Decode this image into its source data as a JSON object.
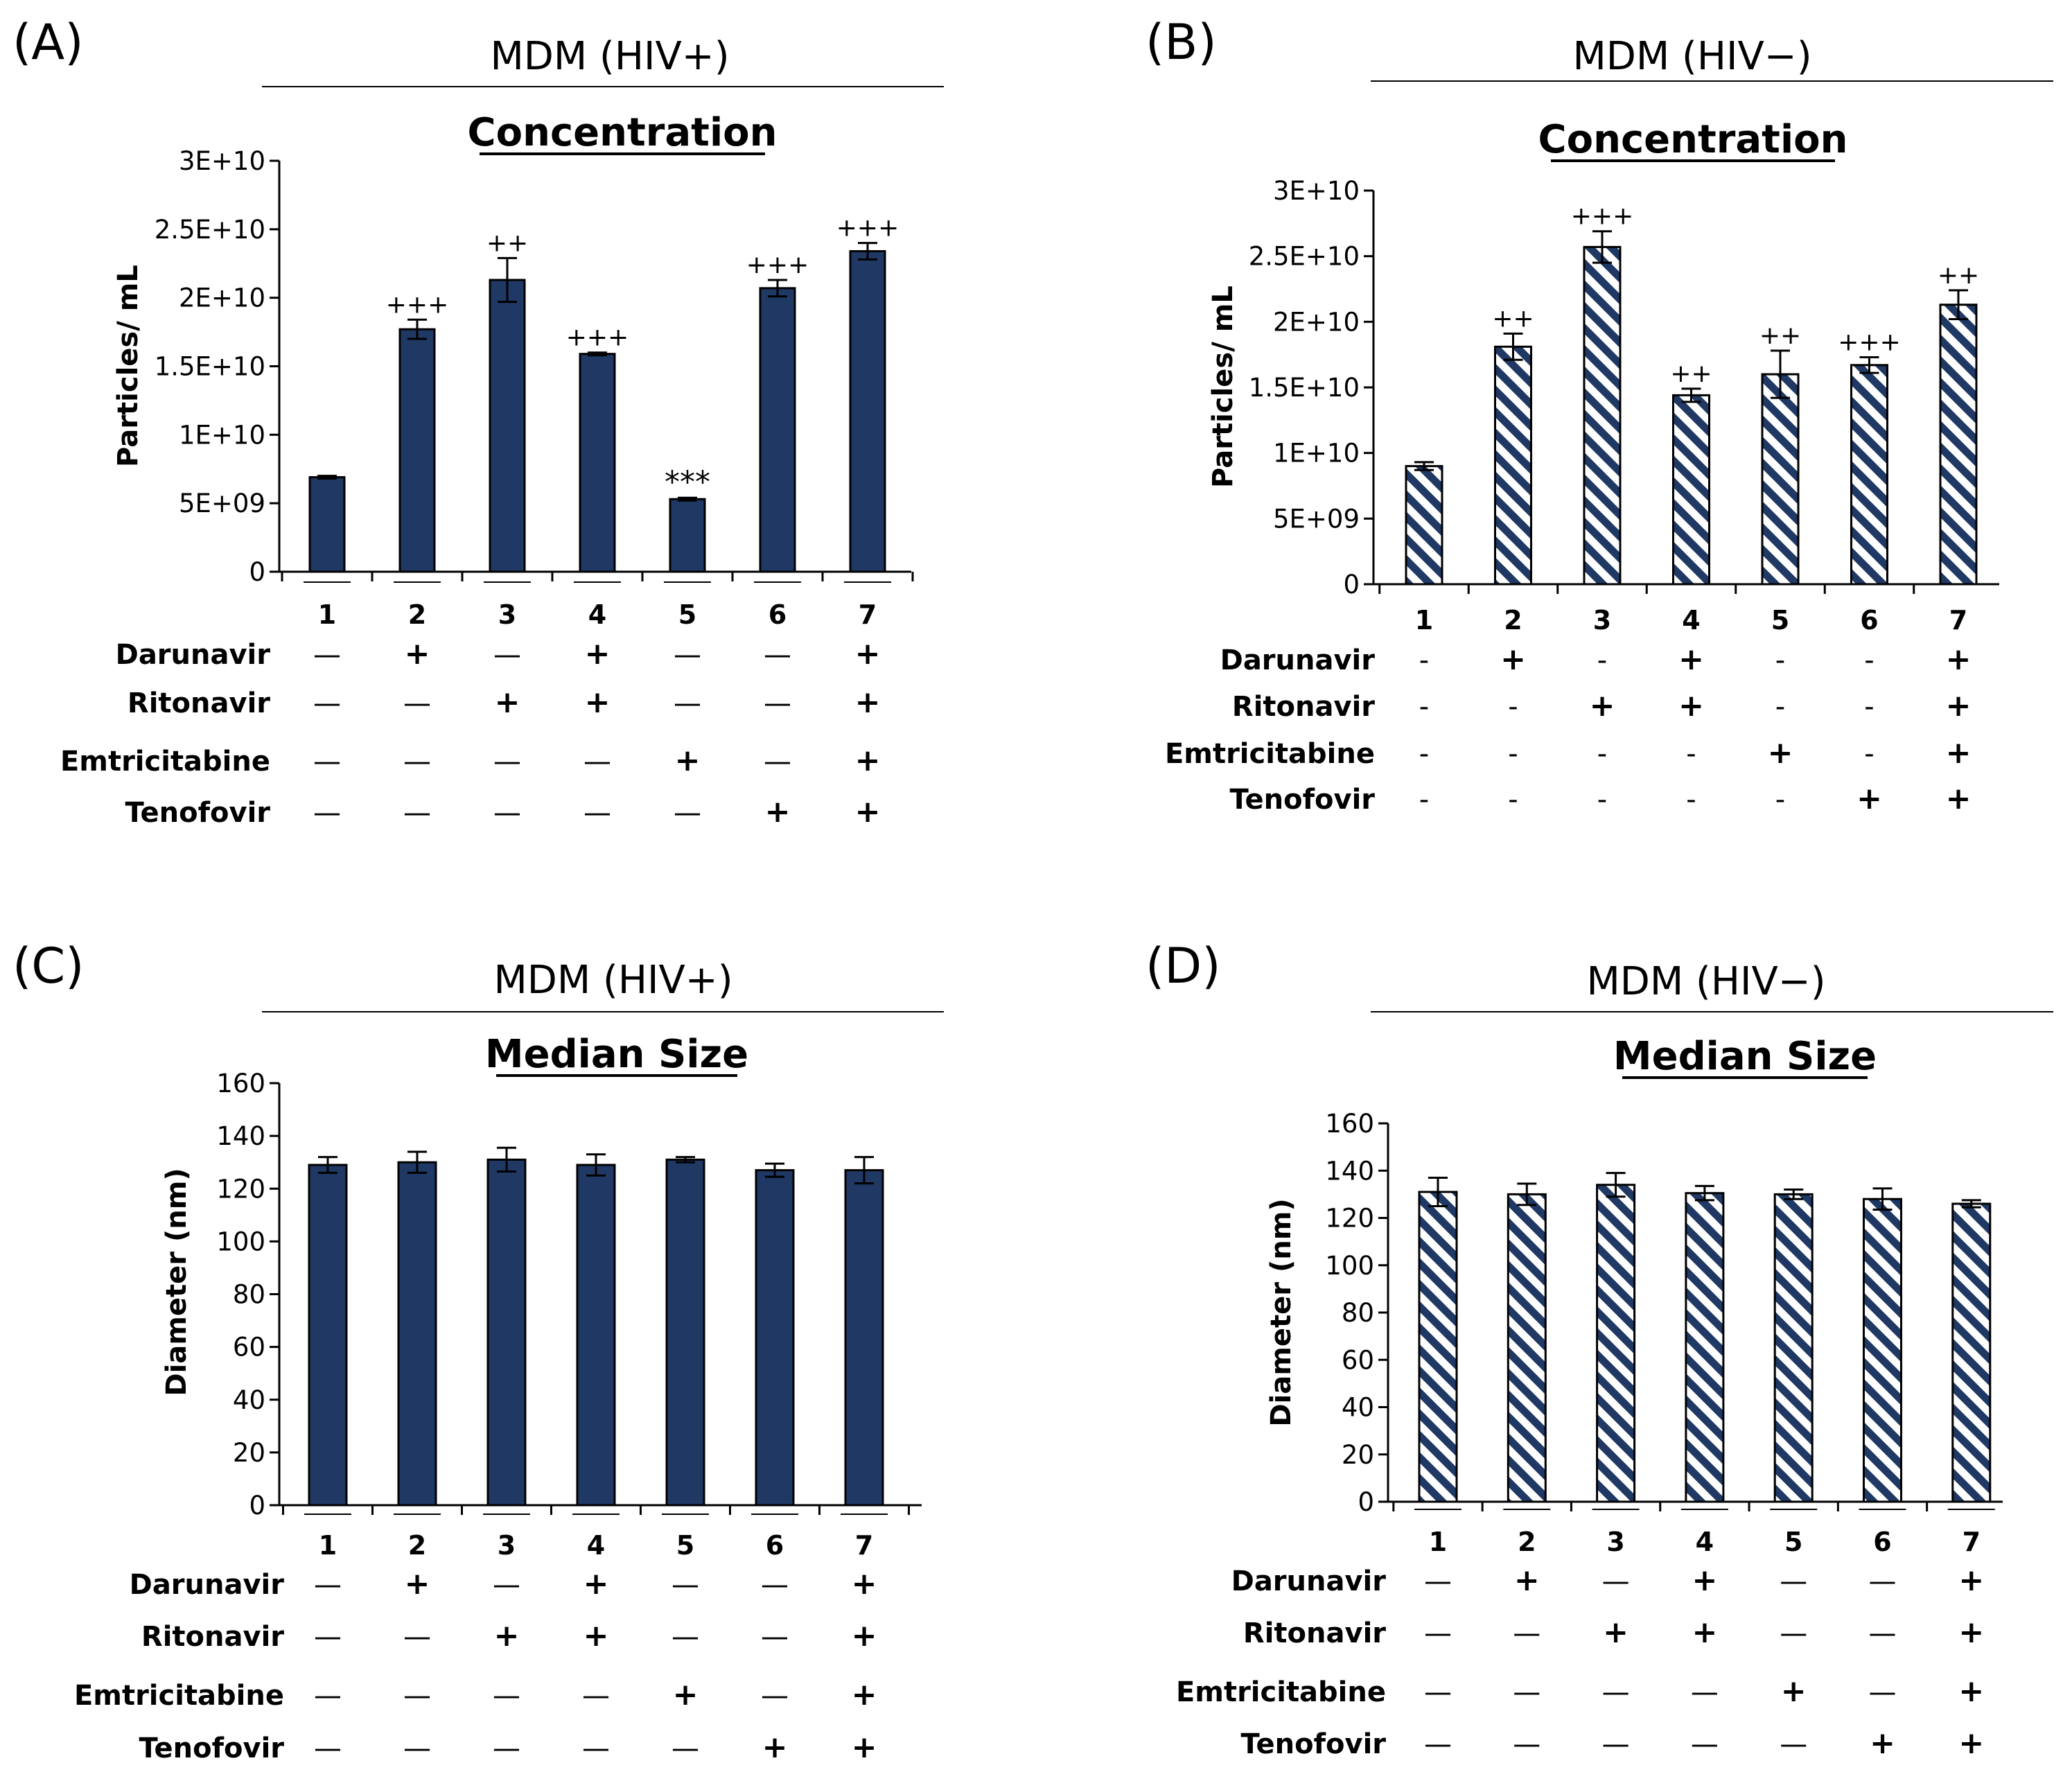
{
  "figure": {
    "treatments": [
      "Darunavir",
      "Ritonavir",
      "Emtricitabine",
      "Tenofovir"
    ],
    "group_labels": [
      "1",
      "2",
      "3",
      "4",
      "5",
      "6",
      "7"
    ],
    "minus_sign": "—",
    "hyphen_sign": "-",
    "plus_sign": "+",
    "bar_color_solid": "#1f3864",
    "bar_color_hatch": "#1f3864"
  },
  "chart_data": [
    {
      "panel": "(A)",
      "header": "MDM (HIV+)",
      "title": "Concentration",
      "type": "bar",
      "fill": "solid",
      "ylabel": "Particles/ mL",
      "ylim": [
        0,
        30000000000
      ],
      "yticks": [
        0,
        5000000000,
        10000000000,
        15000000000,
        20000000000,
        25000000000,
        30000000000
      ],
      "ytick_labels": [
        "0",
        "5E+09",
        "1E+10",
        "1.5E+10",
        "2E+10",
        "2.5E+10",
        "3E+10"
      ],
      "categories": [
        "1",
        "2",
        "3",
        "4",
        "5",
        "6",
        "7"
      ],
      "values": [
        6900000000,
        17700000000,
        21300000000,
        15900000000,
        5300000000,
        20700000000,
        23400000000
      ],
      "errors": [
        100000000,
        700000000,
        1600000000,
        100000000,
        100000000,
        600000000,
        600000000
      ],
      "annotations": [
        "",
        "+++",
        "++",
        "+++",
        "***",
        "+++",
        "+++"
      ],
      "treatment_matrix": [
        [
          "—",
          "+",
          "—",
          "+",
          "—",
          "—",
          "+"
        ],
        [
          "—",
          "—",
          "+",
          "+",
          "—",
          "—",
          "+"
        ],
        [
          "—",
          "—",
          "—",
          "—",
          "+",
          "—",
          "+"
        ],
        [
          "—",
          "—",
          "—",
          "—",
          "—",
          "+",
          "+"
        ]
      ]
    },
    {
      "panel": "(B)",
      "header": "MDM (HIV−)",
      "title": "Concentration",
      "type": "bar",
      "fill": "hatch",
      "ylabel": "Particles/ mL",
      "ylim": [
        0,
        30000000000
      ],
      "yticks": [
        0,
        5000000000,
        10000000000,
        15000000000,
        20000000000,
        25000000000,
        30000000000
      ],
      "ytick_labels": [
        "0",
        "5E+09",
        "1E+10",
        "1.5E+10",
        "2E+10",
        "2.5E+10",
        "3E+10"
      ],
      "categories": [
        "1",
        "2",
        "3",
        "4",
        "5",
        "6",
        "7"
      ],
      "values": [
        9000000000,
        18100000000,
        25700000000,
        14400000000,
        16000000000,
        16700000000,
        21300000000
      ],
      "errors": [
        300000000,
        1000000000,
        1200000000,
        500000000,
        1800000000,
        600000000,
        1100000000
      ],
      "annotations": [
        "",
        "++",
        "+++",
        "++",
        "++",
        "+++",
        "++"
      ],
      "treatment_matrix": [
        [
          "-",
          "+",
          "-",
          "+",
          "-",
          "-",
          "+"
        ],
        [
          "-",
          "-",
          "+",
          "+",
          "-",
          "-",
          "+"
        ],
        [
          "-",
          "-",
          "-",
          "-",
          "+",
          "-",
          "+"
        ],
        [
          "-",
          "-",
          "-",
          "-",
          "-",
          "+",
          "+"
        ]
      ]
    },
    {
      "panel": "(C)",
      "header": "MDM (HIV+)",
      "title": "Median Size",
      "type": "bar",
      "fill": "solid",
      "ylabel": "Diameter (nm)",
      "ylim": [
        0,
        160
      ],
      "yticks": [
        0,
        20,
        40,
        60,
        80,
        100,
        120,
        140,
        160
      ],
      "ytick_labels": [
        "0",
        "20",
        "40",
        "60",
        "80",
        "100",
        "120",
        "140",
        "160"
      ],
      "categories": [
        "1",
        "2",
        "3",
        "4",
        "5",
        "6",
        "7"
      ],
      "values": [
        129,
        130,
        131,
        129,
        131,
        127,
        127
      ],
      "errors": [
        3,
        4,
        4.5,
        4,
        1,
        2.5,
        5
      ],
      "annotations": [
        "",
        "",
        "",
        "",
        "",
        "",
        ""
      ],
      "treatment_matrix": [
        [
          "—",
          "+",
          "—",
          "+",
          "—",
          "—",
          "+"
        ],
        [
          "—",
          "—",
          "+",
          "+",
          "—",
          "—",
          "+"
        ],
        [
          "—",
          "—",
          "—",
          "—",
          "+",
          "—",
          "+"
        ],
        [
          "—",
          "—",
          "—",
          "—",
          "—",
          "+",
          "+"
        ]
      ]
    },
    {
      "panel": "(D)",
      "header": "MDM (HIV−)",
      "title": "Median Size",
      "type": "bar",
      "fill": "hatch",
      "ylabel": "Diameter (nm)",
      "ylim": [
        0,
        160
      ],
      "yticks": [
        0,
        20,
        40,
        60,
        80,
        100,
        120,
        140,
        160
      ],
      "ytick_labels": [
        "0",
        "20",
        "40",
        "60",
        "80",
        "100",
        "120",
        "140",
        "160"
      ],
      "categories": [
        "1",
        "2",
        "3",
        "4",
        "5",
        "6",
        "7"
      ],
      "values": [
        131,
        130,
        134,
        130.5,
        130,
        128,
        126
      ],
      "errors": [
        6,
        4.5,
        5,
        3,
        2,
        4.5,
        1.5
      ],
      "annotations": [
        "",
        "",
        "",
        "",
        "",
        "",
        ""
      ],
      "treatment_matrix": [
        [
          "—",
          "+",
          "—",
          "+",
          "—",
          "—",
          "+"
        ],
        [
          "—",
          "—",
          "+",
          "+",
          "—",
          "—",
          "+"
        ],
        [
          "—",
          "—",
          "—",
          "—",
          "+",
          "—",
          "+"
        ],
        [
          "—",
          "—",
          "—",
          "—",
          "—",
          "+",
          "+"
        ]
      ]
    }
  ]
}
